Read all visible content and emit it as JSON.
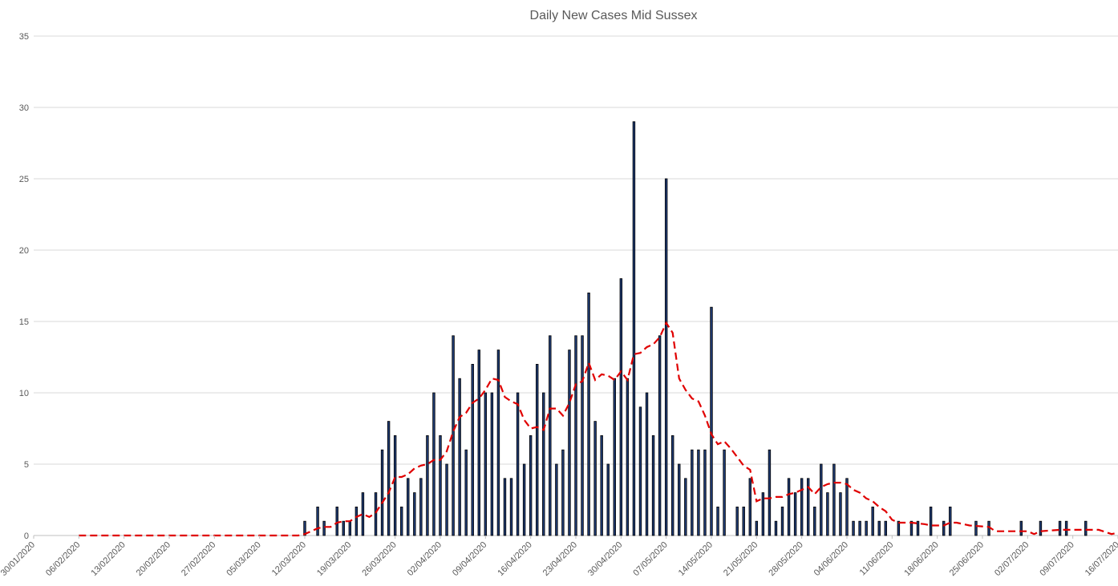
{
  "chart_data": {
    "type": "bar",
    "title": "Daily New Cases Mid Sussex",
    "xlabel": "",
    "ylabel": "",
    "ylim": [
      0,
      35
    ],
    "yticks": [
      0,
      5,
      10,
      15,
      20,
      25,
      30,
      35
    ],
    "grid": true,
    "legend": "none",
    "x_start": "30/01/2020",
    "x_end": "16/07/2020",
    "xticks": [
      "30/01/2020",
      "06/02/2020",
      "13/02/2020",
      "20/02/2020",
      "27/02/2020",
      "05/03/2020",
      "12/03/2020",
      "19/03/2020",
      "26/03/2020",
      "02/04/2020",
      "09/04/2020",
      "16/04/2020",
      "23/04/2020",
      "30/04/2020",
      "07/05/2020",
      "14/05/2020",
      "21/05/2020",
      "28/05/2020",
      "04/06/2020",
      "11/06/2020",
      "18/06/2020",
      "25/06/2020",
      "02/07/2020",
      "09/07/2020",
      "16/07/2020"
    ],
    "series": [
      {
        "type": "bar",
        "color": "#1f3b73",
        "points": [
          {
            "x": "12/03/2020",
            "y": 1
          },
          {
            "x": "14/03/2020",
            "y": 2
          },
          {
            "x": "15/03/2020",
            "y": 1
          },
          {
            "x": "17/03/2020",
            "y": 2
          },
          {
            "x": "18/03/2020",
            "y": 1
          },
          {
            "x": "19/03/2020",
            "y": 1
          },
          {
            "x": "20/03/2020",
            "y": 2
          },
          {
            "x": "21/03/2020",
            "y": 3
          },
          {
            "x": "23/03/2020",
            "y": 3
          },
          {
            "x": "24/03/2020",
            "y": 6
          },
          {
            "x": "25/03/2020",
            "y": 8
          },
          {
            "x": "26/03/2020",
            "y": 7
          },
          {
            "x": "27/03/2020",
            "y": 2
          },
          {
            "x": "28/03/2020",
            "y": 4
          },
          {
            "x": "29/03/2020",
            "y": 3
          },
          {
            "x": "30/03/2020",
            "y": 4
          },
          {
            "x": "31/03/2020",
            "y": 7
          },
          {
            "x": "01/04/2020",
            "y": 10
          },
          {
            "x": "02/04/2020",
            "y": 7
          },
          {
            "x": "03/04/2020",
            "y": 5
          },
          {
            "x": "04/04/2020",
            "y": 14
          },
          {
            "x": "05/04/2020",
            "y": 11
          },
          {
            "x": "06/04/2020",
            "y": 6
          },
          {
            "x": "07/04/2020",
            "y": 12
          },
          {
            "x": "08/04/2020",
            "y": 13
          },
          {
            "x": "09/04/2020",
            "y": 10
          },
          {
            "x": "10/04/2020",
            "y": 10
          },
          {
            "x": "11/04/2020",
            "y": 13
          },
          {
            "x": "12/04/2020",
            "y": 4
          },
          {
            "x": "13/04/2020",
            "y": 4
          },
          {
            "x": "14/04/2020",
            "y": 10
          },
          {
            "x": "15/04/2020",
            "y": 5
          },
          {
            "x": "16/04/2020",
            "y": 7
          },
          {
            "x": "17/04/2020",
            "y": 12
          },
          {
            "x": "18/04/2020",
            "y": 10
          },
          {
            "x": "19/04/2020",
            "y": 14
          },
          {
            "x": "20/04/2020",
            "y": 5
          },
          {
            "x": "21/04/2020",
            "y": 6
          },
          {
            "x": "22/04/2020",
            "y": 13
          },
          {
            "x": "23/04/2020",
            "y": 14
          },
          {
            "x": "24/04/2020",
            "y": 14
          },
          {
            "x": "25/04/2020",
            "y": 17
          },
          {
            "x": "26/04/2020",
            "y": 8
          },
          {
            "x": "27/04/2020",
            "y": 7
          },
          {
            "x": "28/04/2020",
            "y": 5
          },
          {
            "x": "29/04/2020",
            "y": 11
          },
          {
            "x": "30/04/2020",
            "y": 18
          },
          {
            "x": "01/05/2020",
            "y": 11
          },
          {
            "x": "02/05/2020",
            "y": 29
          },
          {
            "x": "03/05/2020",
            "y": 9
          },
          {
            "x": "04/05/2020",
            "y": 10
          },
          {
            "x": "05/05/2020",
            "y": 7
          },
          {
            "x": "06/05/2020",
            "y": 14
          },
          {
            "x": "07/05/2020",
            "y": 25
          },
          {
            "x": "08/05/2020",
            "y": 7
          },
          {
            "x": "09/05/2020",
            "y": 5
          },
          {
            "x": "10/05/2020",
            "y": 4
          },
          {
            "x": "11/05/2020",
            "y": 6
          },
          {
            "x": "12/05/2020",
            "y": 6
          },
          {
            "x": "13/05/2020",
            "y": 6
          },
          {
            "x": "14/05/2020",
            "y": 16
          },
          {
            "x": "15/05/2020",
            "y": 2
          },
          {
            "x": "16/05/2020",
            "y": 6
          },
          {
            "x": "18/05/2020",
            "y": 2
          },
          {
            "x": "19/05/2020",
            "y": 2
          },
          {
            "x": "20/05/2020",
            "y": 4
          },
          {
            "x": "21/05/2020",
            "y": 1
          },
          {
            "x": "22/05/2020",
            "y": 3
          },
          {
            "x": "23/05/2020",
            "y": 6
          },
          {
            "x": "24/05/2020",
            "y": 1
          },
          {
            "x": "25/05/2020",
            "y": 2
          },
          {
            "x": "26/05/2020",
            "y": 4
          },
          {
            "x": "27/05/2020",
            "y": 3
          },
          {
            "x": "28/05/2020",
            "y": 4
          },
          {
            "x": "29/05/2020",
            "y": 4
          },
          {
            "x": "30/05/2020",
            "y": 2
          },
          {
            "x": "31/05/2020",
            "y": 5
          },
          {
            "x": "01/06/2020",
            "y": 3
          },
          {
            "x": "02/06/2020",
            "y": 5
          },
          {
            "x": "03/06/2020",
            "y": 3
          },
          {
            "x": "04/06/2020",
            "y": 4
          },
          {
            "x": "05/06/2020",
            "y": 1
          },
          {
            "x": "06/06/2020",
            "y": 1
          },
          {
            "x": "07/06/2020",
            "y": 1
          },
          {
            "x": "08/06/2020",
            "y": 2
          },
          {
            "x": "09/06/2020",
            "y": 1
          },
          {
            "x": "10/06/2020",
            "y": 1
          },
          {
            "x": "12/06/2020",
            "y": 1
          },
          {
            "x": "14/06/2020",
            "y": 1
          },
          {
            "x": "15/06/2020",
            "y": 1
          },
          {
            "x": "17/06/2020",
            "y": 2
          },
          {
            "x": "19/06/2020",
            "y": 1
          },
          {
            "x": "20/06/2020",
            "y": 2
          },
          {
            "x": "24/06/2020",
            "y": 1
          },
          {
            "x": "26/06/2020",
            "y": 1
          },
          {
            "x": "01/07/2020",
            "y": 1
          },
          {
            "x": "04/07/2020",
            "y": 1
          },
          {
            "x": "07/07/2020",
            "y": 1
          },
          {
            "x": "08/07/2020",
            "y": 1
          },
          {
            "x": "11/07/2020",
            "y": 1
          }
        ]
      },
      {
        "type": "line",
        "style": "dashed",
        "color": "#e00000",
        "points": [
          {
            "x": "06/02/2020",
            "y": 0
          },
          {
            "x": "11/03/2020",
            "y": 0
          },
          {
            "x": "12/03/2020",
            "y": 0.1
          },
          {
            "x": "14/03/2020",
            "y": 0.5
          },
          {
            "x": "15/03/2020",
            "y": 0.6
          },
          {
            "x": "16/03/2020",
            "y": 0.6
          },
          {
            "x": "17/03/2020",
            "y": 0.9
          },
          {
            "x": "18/03/2020",
            "y": 1
          },
          {
            "x": "19/03/2020",
            "y": 1
          },
          {
            "x": "20/03/2020",
            "y": 1.3
          },
          {
            "x": "21/03/2020",
            "y": 1.5
          },
          {
            "x": "22/03/2020",
            "y": 1.3
          },
          {
            "x": "23/03/2020",
            "y": 1.6
          },
          {
            "x": "24/03/2020",
            "y": 2.3
          },
          {
            "x": "25/03/2020",
            "y": 3
          },
          {
            "x": "26/03/2020",
            "y": 4.1
          },
          {
            "x": "27/03/2020",
            "y": 4.1
          },
          {
            "x": "28/03/2020",
            "y": 4.3
          },
          {
            "x": "29/03/2020",
            "y": 4.7
          },
          {
            "x": "30/03/2020",
            "y": 4.9
          },
          {
            "x": "31/03/2020",
            "y": 5
          },
          {
            "x": "01/04/2020",
            "y": 5.3
          },
          {
            "x": "02/04/2020",
            "y": 5.3
          },
          {
            "x": "03/04/2020",
            "y": 5.9
          },
          {
            "x": "04/04/2020",
            "y": 7.3
          },
          {
            "x": "05/04/2020",
            "y": 8.3
          },
          {
            "x": "06/04/2020",
            "y": 8.6
          },
          {
            "x": "07/04/2020",
            "y": 9.3
          },
          {
            "x": "08/04/2020",
            "y": 9.6
          },
          {
            "x": "09/04/2020",
            "y": 10.2
          },
          {
            "x": "10/04/2020",
            "y": 11
          },
          {
            "x": "11/04/2020",
            "y": 10.9
          },
          {
            "x": "12/04/2020",
            "y": 9.7
          },
          {
            "x": "13/04/2020",
            "y": 9.4
          },
          {
            "x": "14/04/2020",
            "y": 9.2
          },
          {
            "x": "15/04/2020",
            "y": 8.1
          },
          {
            "x": "16/04/2020",
            "y": 7.5
          },
          {
            "x": "17/04/2020",
            "y": 7.6
          },
          {
            "x": "18/04/2020",
            "y": 7.4
          },
          {
            "x": "19/04/2020",
            "y": 8.9
          },
          {
            "x": "20/04/2020",
            "y": 8.9
          },
          {
            "x": "21/04/2020",
            "y": 8.4
          },
          {
            "x": "22/04/2020",
            "y": 9.3
          },
          {
            "x": "23/04/2020",
            "y": 10.6
          },
          {
            "x": "24/04/2020",
            "y": 10.8
          },
          {
            "x": "25/04/2020",
            "y": 12.1
          },
          {
            "x": "26/04/2020",
            "y": 10.9
          },
          {
            "x": "27/04/2020",
            "y": 11.3
          },
          {
            "x": "28/04/2020",
            "y": 11.2
          },
          {
            "x": "29/04/2020",
            "y": 10.9
          },
          {
            "x": "30/04/2020",
            "y": 11.5
          },
          {
            "x": "01/05/2020",
            "y": 10.9
          },
          {
            "x": "02/05/2020",
            "y": 12.7
          },
          {
            "x": "03/05/2020",
            "y": 12.8
          },
          {
            "x": "04/05/2020",
            "y": 13.2
          },
          {
            "x": "05/05/2020",
            "y": 13.4
          },
          {
            "x": "06/05/2020",
            "y": 13.9
          },
          {
            "x": "07/05/2020",
            "y": 14.9
          },
          {
            "x": "08/05/2020",
            "y": 14.2
          },
          {
            "x": "09/05/2020",
            "y": 11
          },
          {
            "x": "10/05/2020",
            "y": 10.2
          },
          {
            "x": "11/05/2020",
            "y": 9.6
          },
          {
            "x": "12/05/2020",
            "y": 9.4
          },
          {
            "x": "13/05/2020",
            "y": 8.4
          },
          {
            "x": "14/05/2020",
            "y": 7.1
          },
          {
            "x": "15/05/2020",
            "y": 6.4
          },
          {
            "x": "16/05/2020",
            "y": 6.6
          },
          {
            "x": "17/05/2020",
            "y": 6.1
          },
          {
            "x": "18/05/2020",
            "y": 5.5
          },
          {
            "x": "19/05/2020",
            "y": 4.9
          },
          {
            "x": "20/05/2020",
            "y": 4.6
          },
          {
            "x": "21/05/2020",
            "y": 2.4
          },
          {
            "x": "22/05/2020",
            "y": 2.6
          },
          {
            "x": "23/05/2020",
            "y": 2.6
          },
          {
            "x": "24/05/2020",
            "y": 2.7
          },
          {
            "x": "25/05/2020",
            "y": 2.7
          },
          {
            "x": "26/05/2020",
            "y": 2.9
          },
          {
            "x": "27/05/2020",
            "y": 3
          },
          {
            "x": "28/05/2020",
            "y": 3.2
          },
          {
            "x": "29/05/2020",
            "y": 3.4
          },
          {
            "x": "30/05/2020",
            "y": 2.9
          },
          {
            "x": "31/05/2020",
            "y": 3.4
          },
          {
            "x": "01/06/2020",
            "y": 3.6
          },
          {
            "x": "02/06/2020",
            "y": 3.7
          },
          {
            "x": "03/06/2020",
            "y": 3.7
          },
          {
            "x": "04/06/2020",
            "y": 3.6
          },
          {
            "x": "05/06/2020",
            "y": 3.2
          },
          {
            "x": "06/06/2020",
            "y": 3
          },
          {
            "x": "07/06/2020",
            "y": 2.6
          },
          {
            "x": "08/06/2020",
            "y": 2.4
          },
          {
            "x": "09/06/2020",
            "y": 2
          },
          {
            "x": "10/06/2020",
            "y": 1.7
          },
          {
            "x": "11/06/2020",
            "y": 1.1
          },
          {
            "x": "12/06/2020",
            "y": 0.9
          },
          {
            "x": "14/06/2020",
            "y": 0.9
          },
          {
            "x": "16/06/2020",
            "y": 0.8
          },
          {
            "x": "17/06/2020",
            "y": 0.7
          },
          {
            "x": "19/06/2020",
            "y": 0.7
          },
          {
            "x": "20/06/2020",
            "y": 0.9
          },
          {
            "x": "21/06/2020",
            "y": 0.9
          },
          {
            "x": "23/06/2020",
            "y": 0.7
          },
          {
            "x": "26/06/2020",
            "y": 0.6
          },
          {
            "x": "27/06/2020",
            "y": 0.3
          },
          {
            "x": "01/07/2020",
            "y": 0.3
          },
          {
            "x": "02/07/2020",
            "y": 0.3
          },
          {
            "x": "03/07/2020",
            "y": 0.1
          },
          {
            "x": "04/07/2020",
            "y": 0.3
          },
          {
            "x": "07/07/2020",
            "y": 0.4
          },
          {
            "x": "11/07/2020",
            "y": 0.4
          },
          {
            "x": "13/07/2020",
            "y": 0.4
          },
          {
            "x": "15/07/2020",
            "y": 0.1
          },
          {
            "x": "16/07/2020",
            "y": 0.2
          }
        ]
      }
    ]
  }
}
